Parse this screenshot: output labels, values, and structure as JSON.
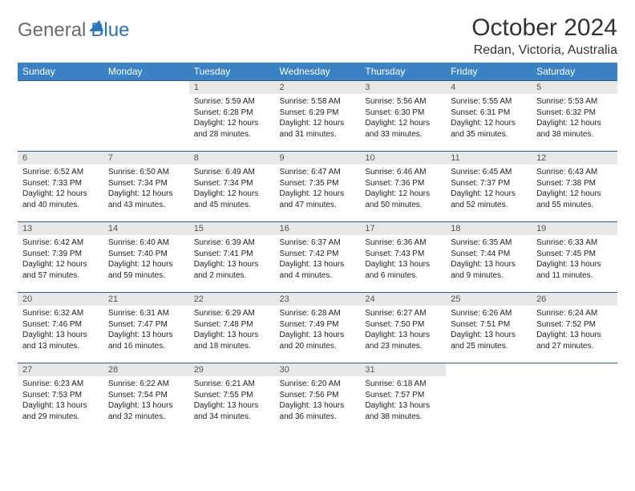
{
  "logo": {
    "general": "General",
    "blue": "Blue"
  },
  "title": "October 2024",
  "location": "Redan, Victoria, Australia",
  "colors": {
    "header_bg": "#3b82c4",
    "header_text": "#ffffff",
    "daynum_bg": "#e8e8e8",
    "daynum_text": "#555555",
    "cell_border": "#2f5f8f",
    "logo_gray": "#6a6a6a",
    "logo_blue": "#2a74b8"
  },
  "weekdays": [
    "Sunday",
    "Monday",
    "Tuesday",
    "Wednesday",
    "Thursday",
    "Friday",
    "Saturday"
  ],
  "calendar": {
    "type": "table",
    "first_weekday_index": 2,
    "days": [
      {
        "n": 1,
        "sunrise": "Sunrise: 5:59 AM",
        "sunset": "Sunset: 6:28 PM",
        "daylight": "Daylight: 12 hours and 28 minutes."
      },
      {
        "n": 2,
        "sunrise": "Sunrise: 5:58 AM",
        "sunset": "Sunset: 6:29 PM",
        "daylight": "Daylight: 12 hours and 31 minutes."
      },
      {
        "n": 3,
        "sunrise": "Sunrise: 5:56 AM",
        "sunset": "Sunset: 6:30 PM",
        "daylight": "Daylight: 12 hours and 33 minutes."
      },
      {
        "n": 4,
        "sunrise": "Sunrise: 5:55 AM",
        "sunset": "Sunset: 6:31 PM",
        "daylight": "Daylight: 12 hours and 35 minutes."
      },
      {
        "n": 5,
        "sunrise": "Sunrise: 5:53 AM",
        "sunset": "Sunset: 6:32 PM",
        "daylight": "Daylight: 12 hours and 38 minutes."
      },
      {
        "n": 6,
        "sunrise": "Sunrise: 6:52 AM",
        "sunset": "Sunset: 7:33 PM",
        "daylight": "Daylight: 12 hours and 40 minutes."
      },
      {
        "n": 7,
        "sunrise": "Sunrise: 6:50 AM",
        "sunset": "Sunset: 7:34 PM",
        "daylight": "Daylight: 12 hours and 43 minutes."
      },
      {
        "n": 8,
        "sunrise": "Sunrise: 6:49 AM",
        "sunset": "Sunset: 7:34 PM",
        "daylight": "Daylight: 12 hours and 45 minutes."
      },
      {
        "n": 9,
        "sunrise": "Sunrise: 6:47 AM",
        "sunset": "Sunset: 7:35 PM",
        "daylight": "Daylight: 12 hours and 47 minutes."
      },
      {
        "n": 10,
        "sunrise": "Sunrise: 6:46 AM",
        "sunset": "Sunset: 7:36 PM",
        "daylight": "Daylight: 12 hours and 50 minutes."
      },
      {
        "n": 11,
        "sunrise": "Sunrise: 6:45 AM",
        "sunset": "Sunset: 7:37 PM",
        "daylight": "Daylight: 12 hours and 52 minutes."
      },
      {
        "n": 12,
        "sunrise": "Sunrise: 6:43 AM",
        "sunset": "Sunset: 7:38 PM",
        "daylight": "Daylight: 12 hours and 55 minutes."
      },
      {
        "n": 13,
        "sunrise": "Sunrise: 6:42 AM",
        "sunset": "Sunset: 7:39 PM",
        "daylight": "Daylight: 12 hours and 57 minutes."
      },
      {
        "n": 14,
        "sunrise": "Sunrise: 6:40 AM",
        "sunset": "Sunset: 7:40 PM",
        "daylight": "Daylight: 12 hours and 59 minutes."
      },
      {
        "n": 15,
        "sunrise": "Sunrise: 6:39 AM",
        "sunset": "Sunset: 7:41 PM",
        "daylight": "Daylight: 13 hours and 2 minutes."
      },
      {
        "n": 16,
        "sunrise": "Sunrise: 6:37 AM",
        "sunset": "Sunset: 7:42 PM",
        "daylight": "Daylight: 13 hours and 4 minutes."
      },
      {
        "n": 17,
        "sunrise": "Sunrise: 6:36 AM",
        "sunset": "Sunset: 7:43 PM",
        "daylight": "Daylight: 13 hours and 6 minutes."
      },
      {
        "n": 18,
        "sunrise": "Sunrise: 6:35 AM",
        "sunset": "Sunset: 7:44 PM",
        "daylight": "Daylight: 13 hours and 9 minutes."
      },
      {
        "n": 19,
        "sunrise": "Sunrise: 6:33 AM",
        "sunset": "Sunset: 7:45 PM",
        "daylight": "Daylight: 13 hours and 11 minutes."
      },
      {
        "n": 20,
        "sunrise": "Sunrise: 6:32 AM",
        "sunset": "Sunset: 7:46 PM",
        "daylight": "Daylight: 13 hours and 13 minutes."
      },
      {
        "n": 21,
        "sunrise": "Sunrise: 6:31 AM",
        "sunset": "Sunset: 7:47 PM",
        "daylight": "Daylight: 13 hours and 16 minutes."
      },
      {
        "n": 22,
        "sunrise": "Sunrise: 6:29 AM",
        "sunset": "Sunset: 7:48 PM",
        "daylight": "Daylight: 13 hours and 18 minutes."
      },
      {
        "n": 23,
        "sunrise": "Sunrise: 6:28 AM",
        "sunset": "Sunset: 7:49 PM",
        "daylight": "Daylight: 13 hours and 20 minutes."
      },
      {
        "n": 24,
        "sunrise": "Sunrise: 6:27 AM",
        "sunset": "Sunset: 7:50 PM",
        "daylight": "Daylight: 13 hours and 23 minutes."
      },
      {
        "n": 25,
        "sunrise": "Sunrise: 6:26 AM",
        "sunset": "Sunset: 7:51 PM",
        "daylight": "Daylight: 13 hours and 25 minutes."
      },
      {
        "n": 26,
        "sunrise": "Sunrise: 6:24 AM",
        "sunset": "Sunset: 7:52 PM",
        "daylight": "Daylight: 13 hours and 27 minutes."
      },
      {
        "n": 27,
        "sunrise": "Sunrise: 6:23 AM",
        "sunset": "Sunset: 7:53 PM",
        "daylight": "Daylight: 13 hours and 29 minutes."
      },
      {
        "n": 28,
        "sunrise": "Sunrise: 6:22 AM",
        "sunset": "Sunset: 7:54 PM",
        "daylight": "Daylight: 13 hours and 32 minutes."
      },
      {
        "n": 29,
        "sunrise": "Sunrise: 6:21 AM",
        "sunset": "Sunset: 7:55 PM",
        "daylight": "Daylight: 13 hours and 34 minutes."
      },
      {
        "n": 30,
        "sunrise": "Sunrise: 6:20 AM",
        "sunset": "Sunset: 7:56 PM",
        "daylight": "Daylight: 13 hours and 36 minutes."
      },
      {
        "n": 31,
        "sunrise": "Sunrise: 6:18 AM",
        "sunset": "Sunset: 7:57 PM",
        "daylight": "Daylight: 13 hours and 38 minutes."
      }
    ]
  }
}
